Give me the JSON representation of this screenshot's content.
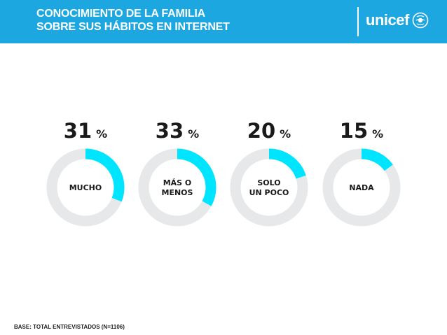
{
  "header": {
    "title_line1": "CONOCIMIENTO DE LA FAMILIA",
    "title_line2": "SOBRE SUS HÁBITOS EN INTERNET",
    "logo_text": "unicef",
    "background_color": "#1ca7e0"
  },
  "footer": {
    "base_note": "BASE: TOTAL ENTREVISTADOS (N=1106)"
  },
  "chart_data": {
    "type": "pie",
    "variant": "donut",
    "percent_symbol": "%",
    "colors": {
      "filled": "#00e5ff",
      "remaining": "#e6e8ea",
      "text": "#1a1a1a"
    },
    "categories": [
      {
        "label_lines": [
          "MUCHO"
        ],
        "value": 31
      },
      {
        "label_lines": [
          "MÁS O",
          "MENOS"
        ],
        "value": 33
      },
      {
        "label_lines": [
          "SOLO",
          "UN POCO"
        ],
        "value": 20
      },
      {
        "label_lines": [
          "NADA"
        ],
        "value": 15
      }
    ]
  }
}
